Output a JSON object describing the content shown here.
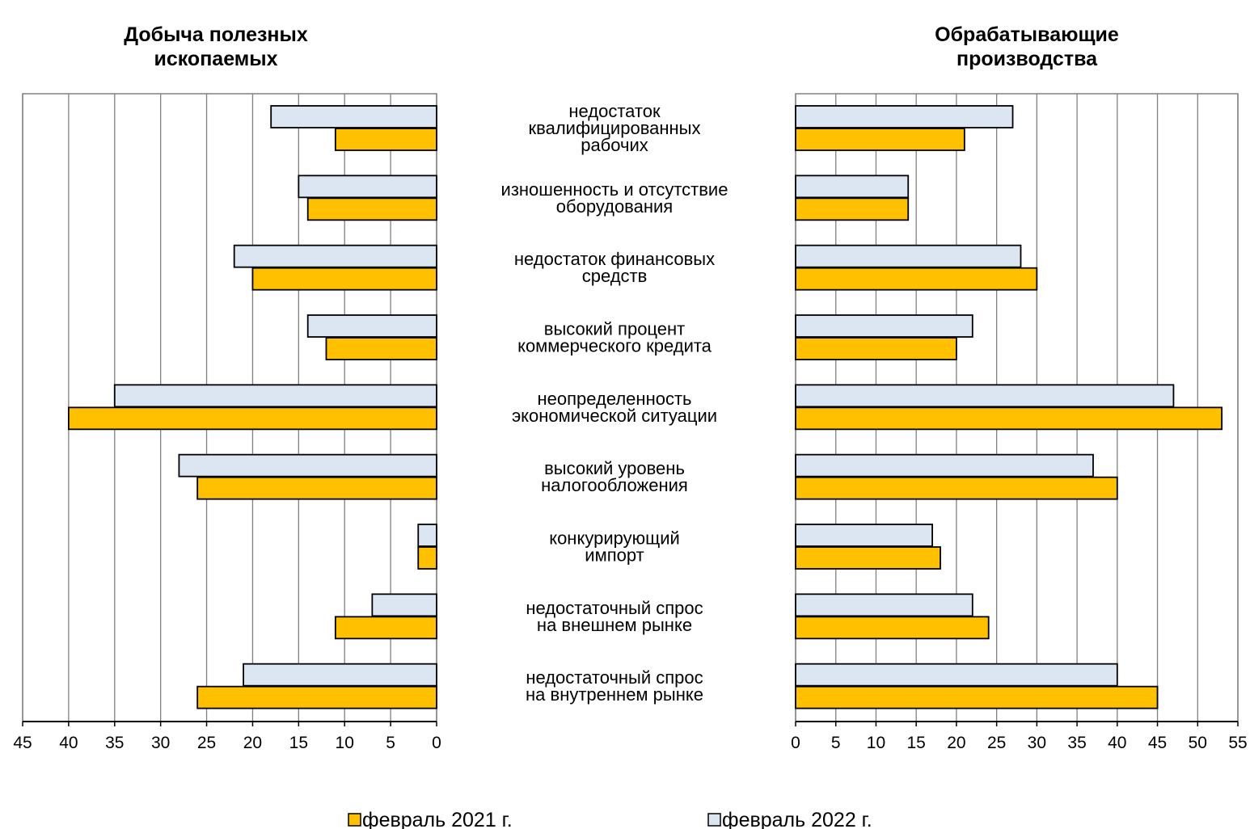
{
  "chart_data": [
    {
      "type": "bar",
      "orientation": "horizontal",
      "x_direction": "reversed",
      "title": "Добыча полезных ископаемых",
      "title_lines": [
        "Добыча полезных",
        "ископаемых"
      ],
      "xlim": [
        0,
        45
      ],
      "xticks": [
        "45",
        "40",
        "35",
        "30",
        "25",
        "20",
        "15",
        "10",
        "5",
        "0"
      ],
      "grid": true,
      "categories": [
        "недостаток квалифицированных рабочих",
        "изношенность и отсутствие оборудования",
        "недостаток финансовых средств",
        "высокий процент коммерческого кредита",
        "неопределенность экономической ситуации",
        "высокий уровень налогообложения",
        "конкурирующий импорт",
        "недостаточный спрос на внешнем рынке",
        "недостаточный спрос на внутреннем рынке"
      ],
      "series": [
        {
          "name": "февраль 2022 г.",
          "values": [
            18,
            15,
            22,
            14,
            35,
            28,
            2,
            7,
            21
          ]
        },
        {
          "name": "февраль 2021 г.",
          "values": [
            11,
            14,
            20,
            12,
            40,
            26,
            2,
            11,
            26
          ]
        }
      ]
    },
    {
      "type": "bar",
      "orientation": "horizontal",
      "title": "Обрабатывающие производства",
      "title_lines": [
        "Обрабатывающие",
        "производства"
      ],
      "xlim": [
        0,
        55
      ],
      "xticks": [
        "0",
        "5",
        "10",
        "15",
        "20",
        "25",
        "30",
        "35",
        "40",
        "45",
        "50",
        "55"
      ],
      "grid": true,
      "categories": [
        "недостаток квалифицированных рабочих",
        "изношенность и отсутствие оборудования",
        "недостаток финансовых средств",
        "высокий процент коммерческого кредита",
        "неопределенность экономической ситуации",
        "высокий уровень налогообложения",
        "конкурирующий импорт",
        "недостаточный спрос на внешнем рынке",
        "недостаточный спрос на внутреннем рынке"
      ],
      "series": [
        {
          "name": "февраль 2022 г.",
          "values": [
            27,
            14,
            28,
            22,
            47,
            37,
            17,
            22,
            40
          ]
        },
        {
          "name": "февраль 2021 г.",
          "values": [
            21,
            14,
            30,
            20,
            53,
            40,
            18,
            24,
            45
          ]
        }
      ]
    }
  ],
  "category_labels": [
    [
      "недостаток",
      "квалифицированных",
      "рабочих"
    ],
    [
      "изношенность и отсутствие",
      "оборудования"
    ],
    [
      "недостаток финансовых",
      "средств"
    ],
    [
      "высокий процент",
      "коммерческого кредита"
    ],
    [
      "неопределенность",
      "экономической ситуации"
    ],
    [
      "высокий уровень",
      "налогообложения"
    ],
    [
      "конкурирующий",
      "импорт"
    ],
    [
      "недостаточный спрос",
      "на внешнем рынке"
    ],
    [
      "недостаточный спрос",
      "на внутреннем рынке"
    ]
  ],
  "legend": [
    {
      "name": "февраль 2021 г.",
      "color": "#FFC000"
    },
    {
      "name": "февраль 2022 г.",
      "color": "#DCE6F2"
    }
  ],
  "colors": {
    "series_2021": "#FFC000",
    "series_2022": "#DCE6F2",
    "grid": "#808080",
    "bar_stroke": "#000000"
  }
}
